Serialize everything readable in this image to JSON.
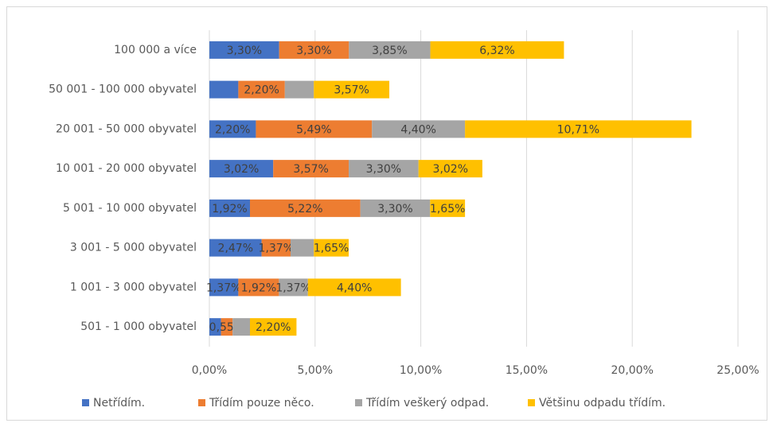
{
  "chart_data": {
    "type": "stacked_bar_horizontal",
    "categories": [
      "100 000 a více",
      "50 001 - 100 000 obyvatel",
      "20 001 - 50 000 obyvatel",
      "10 001 - 20 000 obyvatel",
      "5 001 - 10 000 obyvatel",
      "3 001 - 5 000 obyvatel",
      "1 001 - 3 000 obyvatel",
      "501 - 1 000 obyvatel"
    ],
    "series": [
      {
        "name": "Netřídím.",
        "color": "#4472c4",
        "values": [
          3.3,
          1.37,
          2.2,
          3.02,
          1.92,
          2.47,
          1.37,
          0.55
        ],
        "value_labels": [
          "3,30%",
          null,
          "2,20%",
          "3,02%",
          "1,92%",
          "2,47%",
          "1,37%",
          null
        ]
      },
      {
        "name": "Třídím pouze něco.",
        "color": "#ed7d31",
        "values": [
          3.3,
          2.2,
          5.49,
          3.57,
          5.22,
          1.37,
          1.92,
          0.55
        ],
        "value_labels": [
          "3,30%",
          "2,20%",
          "5,49%",
          "3,57%",
          "5,22%",
          "1,37%",
          "1,92%",
          "0,55%"
        ]
      },
      {
        "name": "Třídím veškerý odpad.",
        "color": "#a5a5a5",
        "values": [
          3.85,
          1.37,
          4.4,
          3.3,
          3.3,
          1.1,
          1.37,
          0.82
        ],
        "value_labels": [
          "3,85%",
          null,
          "4,40%",
          "3,30%",
          "3,30%",
          null,
          "1,37%",
          null
        ]
      },
      {
        "name": "Většinu odpadu třídím.",
        "color": "#ffc000",
        "values": [
          6.32,
          3.57,
          10.71,
          3.02,
          1.65,
          1.65,
          4.4,
          2.2
        ],
        "value_labels": [
          "6,32%",
          "3,57%",
          "10,71%",
          "3,02%",
          "1,65%",
          "1,65%",
          "4,40%",
          "2,20%"
        ]
      }
    ],
    "xlim": [
      0,
      25
    ],
    "xticks": [
      {
        "value": 0,
        "label": "0,00%"
      },
      {
        "value": 5,
        "label": "5,00%"
      },
      {
        "value": 10,
        "label": "10,00%"
      },
      {
        "value": 15,
        "label": "15,00%"
      },
      {
        "value": 20,
        "label": "20,00%"
      },
      {
        "value": 25,
        "label": "25,00%"
      }
    ],
    "grid": true,
    "legend": "bottom"
  }
}
